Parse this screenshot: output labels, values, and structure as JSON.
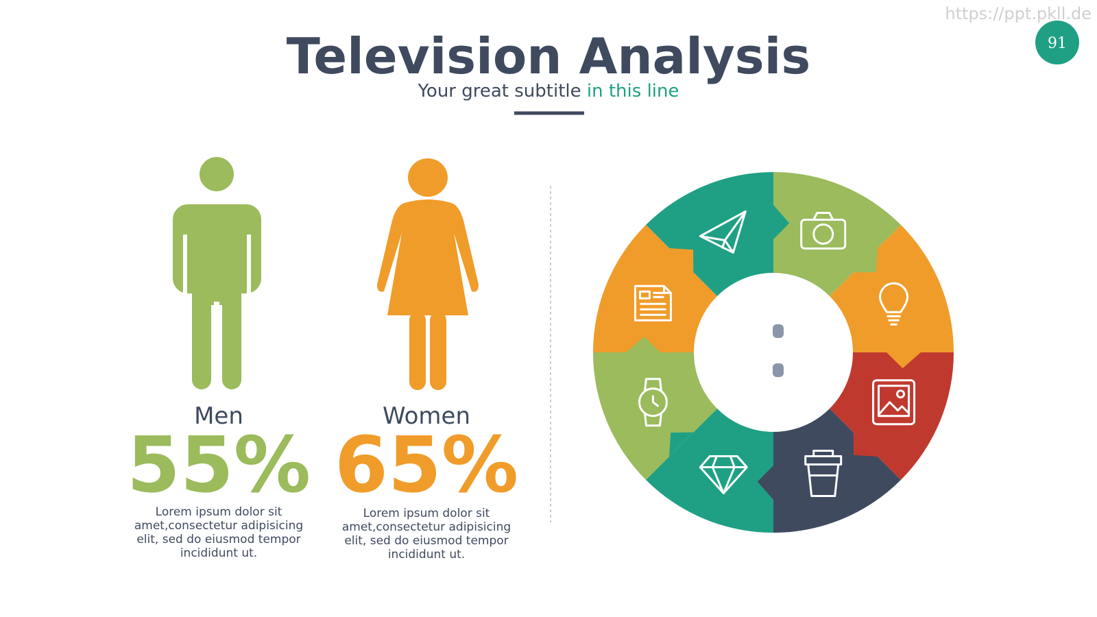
{
  "watermark": "https://ppt.pkll.de",
  "page_number": "91",
  "header": {
    "title": "Television Analysis",
    "subtitle": "Your great subtitle ",
    "subtitle_highlight": "in this line"
  },
  "stats": [
    {
      "label": "Men",
      "percent": "55%",
      "text": "Lorem ipsum dolor sit amet,consectetur adipisicing elit, sed do eiusmod tempor incididunt ut."
    },
    {
      "label": "Women",
      "percent": "65%",
      "text": "Lorem ipsum dolor sit amet,consectetur adipisicing elit, sed do eiusmod tempor incididunt ut."
    }
  ]
}
